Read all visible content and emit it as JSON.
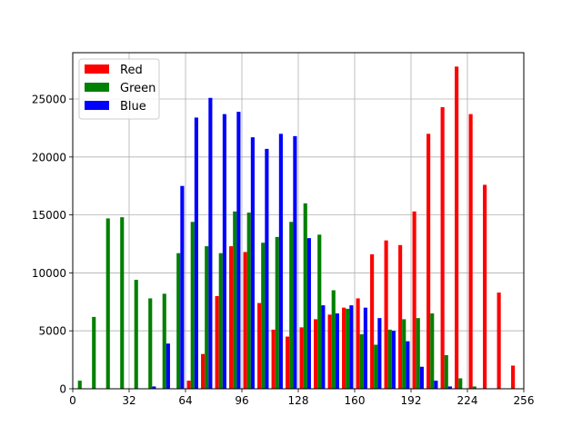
{
  "chart_data": {
    "type": "bar",
    "title": "",
    "xlabel": "",
    "ylabel": "",
    "xlim": [
      0,
      256
    ],
    "ylim": [
      0,
      29000
    ],
    "xticks": [
      0,
      32,
      64,
      96,
      128,
      160,
      192,
      224,
      256
    ],
    "yticks": [
      0,
      5000,
      10000,
      15000,
      20000,
      25000
    ],
    "grid": true,
    "legend_position": "top-left",
    "bin_width": 8,
    "x": [
      0,
      8,
      16,
      24,
      32,
      40,
      48,
      56,
      64,
      72,
      80,
      88,
      96,
      104,
      112,
      120,
      128,
      136,
      144,
      152,
      160,
      168,
      176,
      184,
      192,
      200,
      208,
      216,
      224,
      232,
      240,
      248
    ],
    "series": [
      {
        "name": "Red",
        "color": "#ff0000",
        "values": [
          0,
          0,
          0,
          0,
          0,
          0,
          0,
          0,
          700,
          3000,
          8000,
          12300,
          11800,
          7400,
          5100,
          4500,
          5300,
          6000,
          6400,
          7000,
          7800,
          11600,
          12800,
          12400,
          15300,
          22000,
          24300,
          27800,
          23700,
          17600,
          8300,
          2000
        ]
      },
      {
        "name": "Green",
        "color": "#008000",
        "values": [
          700,
          6200,
          14700,
          14800,
          9400,
          7800,
          8200,
          11700,
          14400,
          12300,
          11700,
          15300,
          15200,
          12600,
          13100,
          14400,
          16000,
          13300,
          8500,
          6900,
          4700,
          3800,
          5100,
          6000,
          6100,
          6500,
          2900,
          900,
          200,
          0,
          0,
          0
        ]
      },
      {
        "name": "Blue",
        "color": "#0000ff",
        "values": [
          0,
          0,
          0,
          0,
          0,
          200,
          3900,
          17500,
          23400,
          25100,
          23700,
          23900,
          21700,
          20700,
          22000,
          21800,
          13000,
          7200,
          6500,
          7200,
          7000,
          6100,
          5000,
          4100,
          1900,
          700,
          200,
          0,
          0,
          0,
          0,
          0
        ]
      }
    ]
  }
}
